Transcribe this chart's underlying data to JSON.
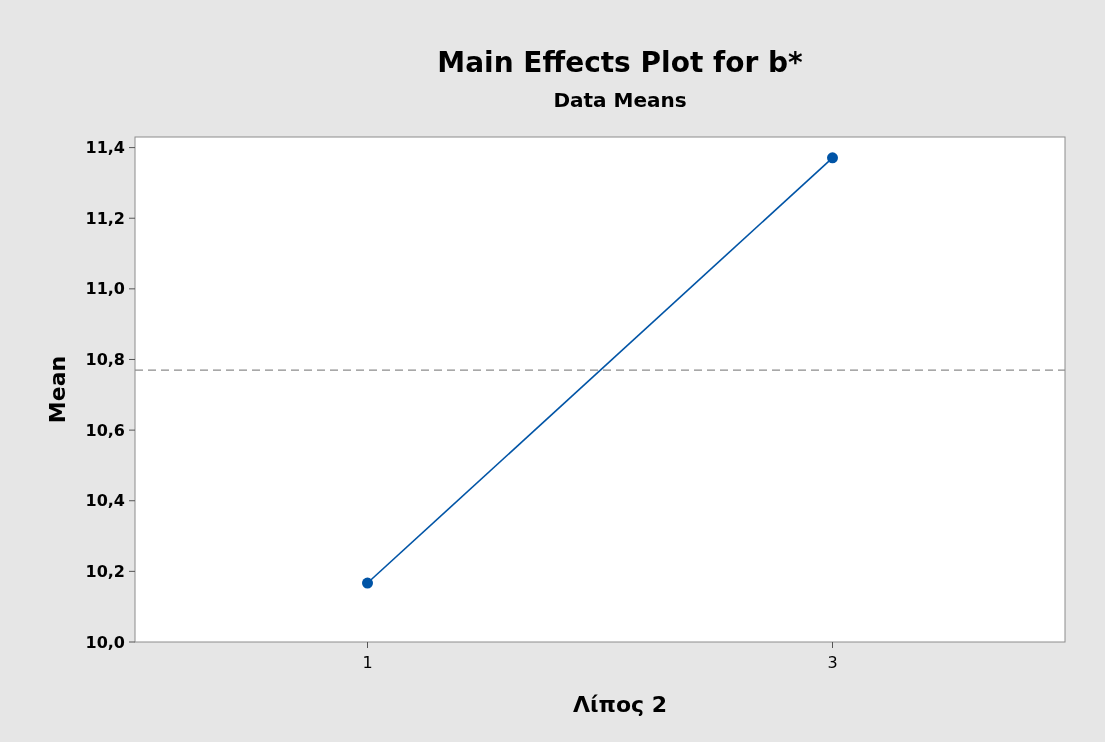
{
  "chart_data": {
    "type": "line",
    "title": "Main Effects Plot for b*",
    "subtitle": "Data Means",
    "xlabel": "Λίπος 2",
    "ylabel": "Mean",
    "categories": [
      "1",
      "3"
    ],
    "series": [
      {
        "color": "#0054a6",
        "values": [
          10.167,
          11.371
        ]
      }
    ],
    "ylim": [
      10.0,
      11.43
    ],
    "yticks": [
      {
        "value": 10.0,
        "label": "10,0"
      },
      {
        "value": 10.2,
        "label": "10,2"
      },
      {
        "value": 10.4,
        "label": "10,4"
      },
      {
        "value": 10.6,
        "label": "10,6"
      },
      {
        "value": 10.8,
        "label": "10,8"
      },
      {
        "value": 11.0,
        "label": "11,0"
      },
      {
        "value": 11.2,
        "label": "11,2"
      },
      {
        "value": 11.4,
        "label": "11,4"
      }
    ],
    "ref_lines": [
      {
        "axis": "y",
        "value": 10.77,
        "color": "#8c8c8c",
        "line_style": "dashed"
      }
    ],
    "grid": false,
    "marker": "circle",
    "line_style": "solid"
  }
}
